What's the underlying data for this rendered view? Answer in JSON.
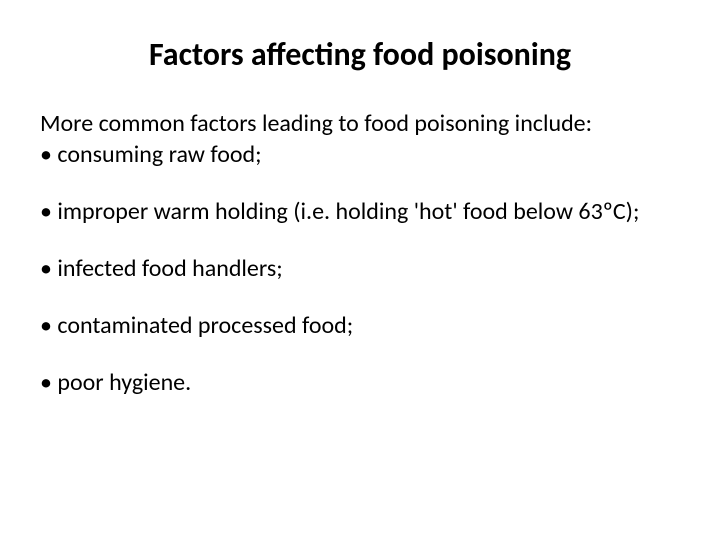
{
  "title": "Factors affecting food poisoning",
  "intro": "More common factors leading to food poisoning include:",
  "bullets": {
    "item1": "• consuming raw food;",
    "item2": "• improper warm holding (i.e. holding 'hot' food below 63ºC);",
    "item3": "• infected food handlers;",
    "item4": "• contaminated processed food;",
    "item5": "• poor hygiene."
  },
  "colors": {
    "background": "#ffffff",
    "text": "#000000"
  },
  "typography": {
    "title_fontsize": 32,
    "title_weight": "bold",
    "body_fontsize": 24,
    "font_family": "Calibri"
  }
}
